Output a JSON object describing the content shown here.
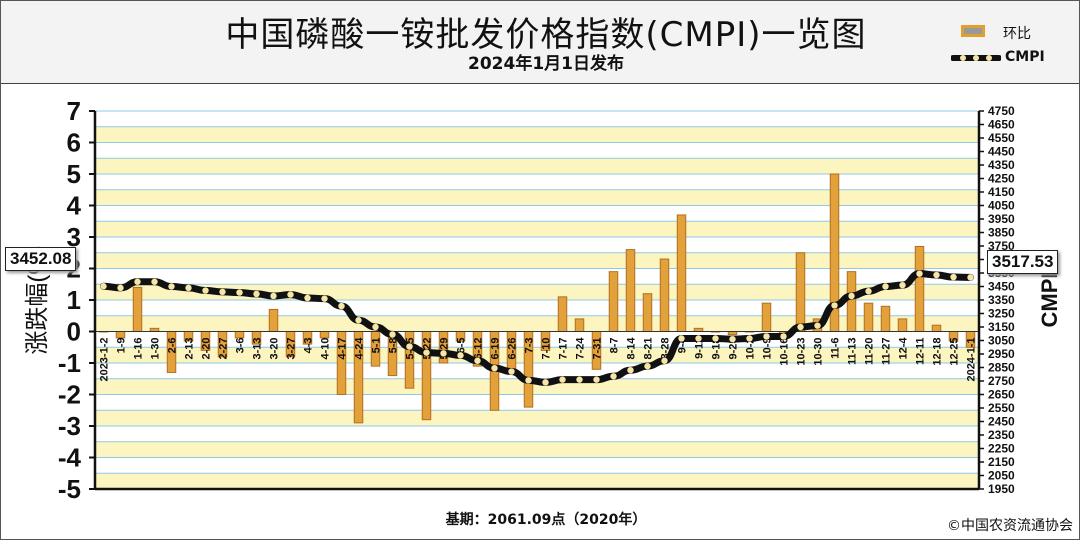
{
  "header": {
    "title": "中国磷酸一铵批发价格指数(CMPI)一览图",
    "subtitle": "2024年1月1日发布"
  },
  "legend": {
    "bar_label": "环比",
    "line_label": "CMPI"
  },
  "footer": {
    "base_note": "基期：2061.09点（2020年）",
    "copyright": "©中国农资流通协会"
  },
  "callouts": {
    "start_value": "3452.08",
    "end_value": "3517.53"
  },
  "colors": {
    "bar_fill": "#e3a13c",
    "bar_stroke": "#b07020",
    "band_yellow": "#fcf5bf",
    "grid_blue": "#8fc9e8",
    "line": "#111111",
    "marker_fill": "#f5e6a8"
  },
  "chart_data": {
    "type": "bar",
    "title": "中国磷酸一铵批发价格指数(CMPI)一览图",
    "ylabel": "涨跌幅(%)",
    "y2label": "CMPI",
    "ylim": [
      -5,
      7
    ],
    "y2lim": [
      1950,
      4750
    ],
    "y_ticks": [
      "-5",
      "-4",
      "-3",
      "-2",
      "-1",
      "0",
      "1",
      "2",
      "3",
      "4",
      "5",
      "6",
      "7"
    ],
    "y2_ticks": [
      "1950",
      "2050",
      "2150",
      "2250",
      "2350",
      "2450",
      "2550",
      "2650",
      "2750",
      "2850",
      "2950",
      "3050",
      "3150",
      "3250",
      "3350",
      "3450",
      "3550",
      "3650",
      "3750",
      "3850",
      "3950",
      "4050",
      "4150",
      "4250",
      "4350",
      "4450",
      "4550",
      "4650",
      "4750"
    ],
    "categories": [
      "2023-1-2",
      "1-9",
      "1-16",
      "1-30",
      "2-6",
      "2-13",
      "2-20",
      "2-27",
      "3-6",
      "3-13",
      "3-20",
      "3-27",
      "4-3",
      "4-10",
      "4-17",
      "4-24",
      "5-1",
      "5-8",
      "5-15",
      "5-22",
      "5-29",
      "6-5",
      "6-12",
      "6-19",
      "6-26",
      "7-3",
      "7-10",
      "7-17",
      "7-24",
      "7-31",
      "8-7",
      "8-14",
      "8-21",
      "8-28",
      "9-4",
      "9-11",
      "9-18",
      "9-25",
      "10-2",
      "10-9",
      "10-16",
      "10-23",
      "10-30",
      "11-6",
      "11-13",
      "11-20",
      "11-27",
      "12-4",
      "12-11",
      "12-18",
      "12-25",
      "2024-1-1"
    ],
    "series": [
      {
        "name": "环比",
        "type": "bar",
        "axis": "left",
        "values": [
          0.0,
          -0.2,
          1.4,
          0.1,
          -1.3,
          -0.3,
          -0.6,
          -0.8,
          -0.2,
          -0.4,
          0.7,
          -0.8,
          -0.4,
          -0.2,
          -2.0,
          -2.9,
          -1.1,
          -1.4,
          -1.8,
          -2.8,
          -1.0,
          -0.3,
          -1.1,
          -2.5,
          -1.3,
          -2.4,
          -0.6,
          1.1,
          0.4,
          -1.2,
          1.9,
          2.6,
          1.2,
          2.3,
          3.7,
          0.1,
          0.0,
          -0.1,
          0.0,
          0.9,
          -0.1,
          2.5,
          0.4,
          5.0,
          1.9,
          0.9,
          0.8,
          0.4,
          2.7,
          0.2,
          -0.3,
          -0.5
        ]
      },
      {
        "name": "CMPI",
        "type": "line",
        "axis": "right",
        "values": [
          3452.08,
          3440,
          3485,
          3485,
          3450,
          3440,
          3420,
          3410,
          3405,
          3395,
          3380,
          3390,
          3365,
          3360,
          3305,
          3200,
          3150,
          3095,
          3005,
          2960,
          2955,
          2940,
          2900,
          2845,
          2820,
          2755,
          2740,
          2760,
          2760,
          2760,
          2785,
          2830,
          2860,
          2900,
          3065,
          3065,
          3065,
          3060,
          3065,
          3080,
          3080,
          3150,
          3160,
          3310,
          3380,
          3415,
          3450,
          3460,
          3545,
          3535,
          3520,
          3517.53
        ]
      }
    ],
    "grid": true,
    "legend_position": "top-right"
  }
}
